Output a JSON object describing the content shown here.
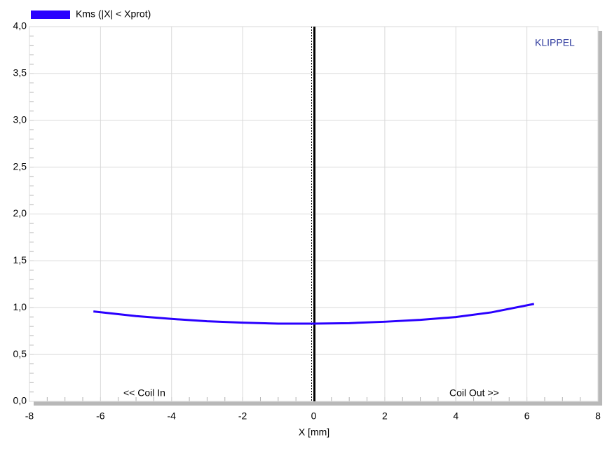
{
  "chart_data": {
    "type": "line",
    "x_label": "X [mm]",
    "annotations": [
      "KLIPPEL",
      "<< Coil In",
      "Coil Out >>"
    ],
    "series": [
      {
        "name": "Kms (|X| < Xprot)",
        "color": "#2a00ff",
        "x": [
          -6.2,
          -5,
          -4,
          -3,
          -2,
          -1,
          0,
          1,
          2,
          3,
          4,
          5,
          6.2
        ],
        "values": [
          0.96,
          0.91,
          0.88,
          0.855,
          0.84,
          0.83,
          0.83,
          0.835,
          0.85,
          0.87,
          0.9,
          0.95,
          1.04
        ]
      }
    ],
    "marker_x": 0,
    "xlim": [
      -8,
      8
    ],
    "xticks": [
      -8,
      -6,
      -4,
      -2,
      0,
      2,
      4,
      6,
      8
    ],
    "ylim": [
      0,
      4
    ],
    "yticks": [
      {
        "value": 0,
        "label": "0,0"
      },
      {
        "value": 0.5,
        "label": "0,5"
      },
      {
        "value": 1,
        "label": "1,0"
      },
      {
        "value": 1.5,
        "label": "1,5"
      },
      {
        "value": 2,
        "label": "2,0"
      },
      {
        "value": 2.5,
        "label": "2,5"
      },
      {
        "value": 3,
        "label": "3,0"
      },
      {
        "value": 3.5,
        "label": "3,5"
      },
      {
        "value": 4,
        "label": "4,0"
      }
    ],
    "grid": true
  }
}
